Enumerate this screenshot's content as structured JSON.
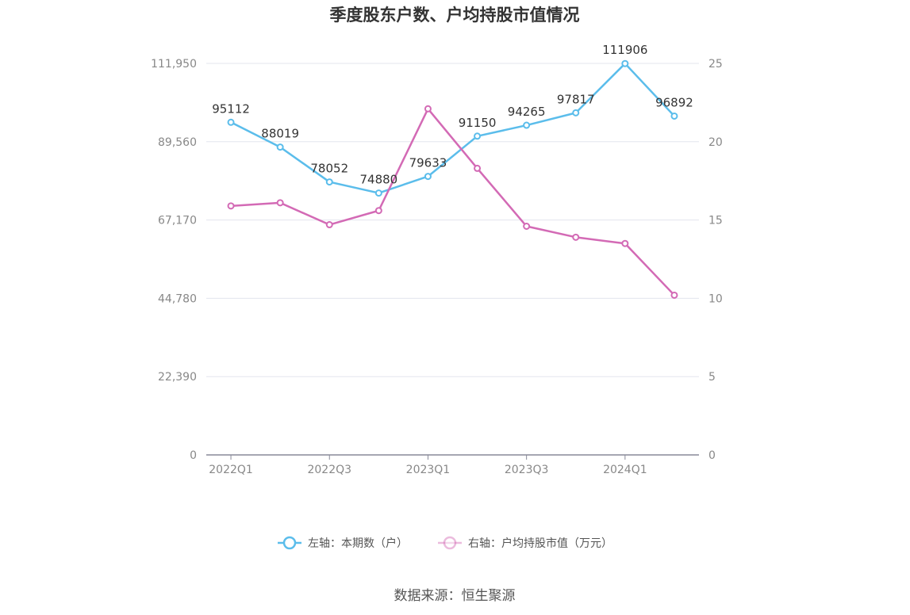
{
  "chart_data": {
    "type": "line",
    "title": "季度股东户数、户均持股市值情况",
    "categories": [
      "2022Q1",
      "2022Q2",
      "2022Q3",
      "2022Q4",
      "2023Q1",
      "2023Q2",
      "2023Q3",
      "2023Q4",
      "2024Q1",
      "2024Q2"
    ],
    "x_tick_labels": [
      "2022Q1",
      "2022Q3",
      "2023Q1",
      "2023Q3",
      "2024Q1"
    ],
    "left_axis": {
      "ticks": [
        "0",
        "22,390",
        "44,780",
        "67,170",
        "89,560",
        "111,950"
      ],
      "ylim": [
        0,
        111950
      ]
    },
    "right_axis": {
      "ticks": [
        "0",
        "5",
        "10",
        "15",
        "20",
        "25"
      ],
      "ylim": [
        0,
        25
      ]
    },
    "grid": true,
    "legend_position": "bottom",
    "series": [
      {
        "name": "左轴：本期数（户）",
        "axis": "left",
        "color": "#5bbdeb",
        "values": [
          95112,
          88019,
          78052,
          74880,
          79633,
          91150,
          94265,
          97817,
          111906,
          96892
        ],
        "data_labels": [
          "95112",
          "88019",
          "78052",
          "74880",
          "79633",
          "91150",
          "94265",
          "97817",
          "111906",
          "96892"
        ]
      },
      {
        "name": "右轴：户均持股市值（万元）",
        "axis": "right",
        "color": "#d36ab5",
        "values": [
          15.9,
          16.1,
          14.7,
          15.6,
          22.1,
          18.3,
          14.6,
          13.9,
          13.5,
          10.2
        ]
      }
    ],
    "source": "数据来源：恒生聚源"
  }
}
